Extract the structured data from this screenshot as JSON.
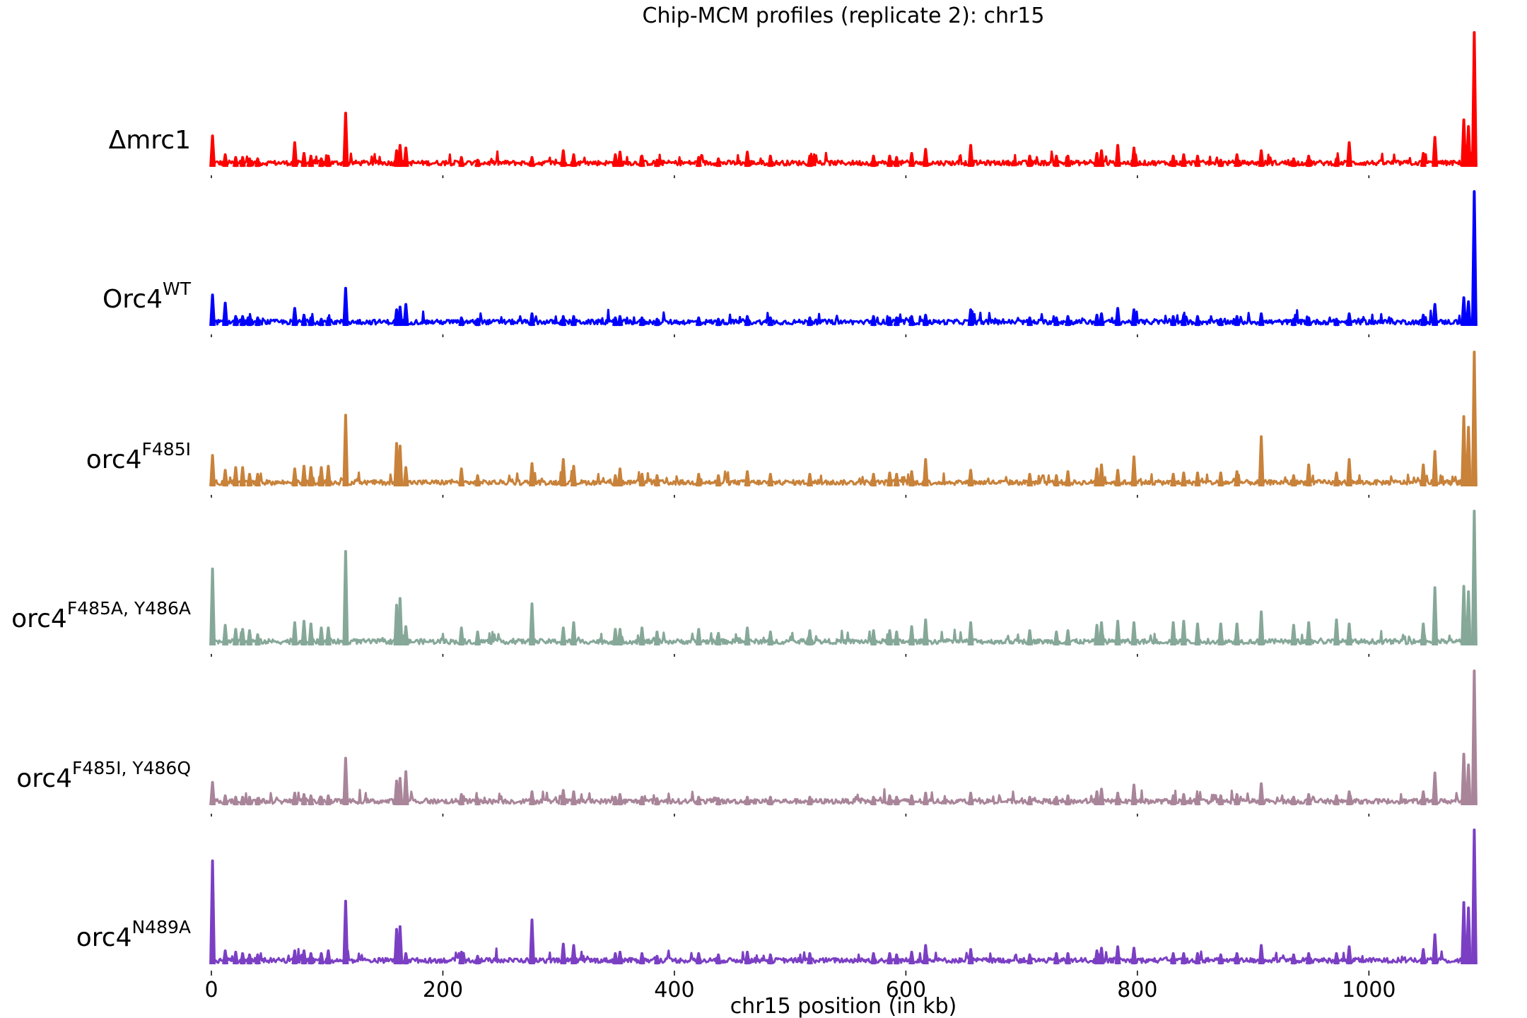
{
  "chart_data": {
    "type": "line",
    "title": "Chip-MCM profiles (replicate 2): chr15",
    "xlabel": "chr15 position (in kb)",
    "xlim": [
      0,
      1092
    ],
    "x_ticks": [
      0,
      200,
      400,
      600,
      800,
      1000
    ],
    "grid": false,
    "legend": "none",
    "peak_positions_kb": [
      1,
      12,
      21,
      27,
      33,
      40,
      72,
      80,
      86,
      95,
      101,
      116,
      160,
      163,
      168,
      216,
      230,
      277,
      304,
      313,
      349,
      353,
      372,
      385,
      421,
      438,
      463,
      483,
      517,
      572,
      586,
      592,
      605,
      617,
      656,
      707,
      730,
      740,
      765,
      769,
      783,
      797,
      831,
      840,
      852,
      872,
      886,
      907,
      935,
      948,
      972,
      983,
      1047,
      1057,
      1082,
      1086,
      1091
    ],
    "series": [
      {
        "name": "Δmrc1",
        "label_base": "Δmrc1",
        "label_sup": "",
        "color": "#ff0000",
        "peak_heights": [
          0.23,
          0.09,
          0.07,
          0.07,
          0.06,
          0.06,
          0.18,
          0.1,
          0.08,
          0.06,
          0.08,
          0.4,
          0.12,
          0.16,
          0.14,
          0.07,
          0.05,
          0.07,
          0.12,
          0.09,
          0.09,
          0.11,
          0.08,
          0.05,
          0.07,
          0.06,
          0.11,
          0.08,
          0.08,
          0.08,
          0.08,
          0.07,
          0.1,
          0.13,
          0.16,
          0.08,
          0.08,
          0.08,
          0.1,
          0.12,
          0.16,
          0.14,
          0.08,
          0.09,
          0.08,
          0.05,
          0.09,
          0.12,
          0.06,
          0.08,
          0.06,
          0.18,
          0.1,
          0.22,
          0.35,
          0.3,
          1.0
        ]
      },
      {
        "name": "Orc4WT",
        "label_base": "Orc4",
        "label_sup": "WT",
        "color": "#0000ff",
        "peak_heights": [
          0.23,
          0.17,
          0.07,
          0.07,
          0.06,
          0.06,
          0.13,
          0.08,
          0.06,
          0.05,
          0.06,
          0.28,
          0.12,
          0.14,
          0.16,
          0.06,
          0.05,
          0.09,
          0.07,
          0.07,
          0.06,
          0.07,
          0.06,
          0.05,
          0.06,
          0.05,
          0.07,
          0.06,
          0.06,
          0.07,
          0.06,
          0.06,
          0.07,
          0.08,
          0.12,
          0.06,
          0.06,
          0.07,
          0.08,
          0.09,
          0.13,
          0.12,
          0.07,
          0.08,
          0.07,
          0.05,
          0.07,
          0.09,
          0.05,
          0.06,
          0.05,
          0.09,
          0.08,
          0.16,
          0.21,
          0.18,
          1.0
        ]
      },
      {
        "name": "orc4F485I",
        "label_base": "orc4",
        "label_sup": "F485I",
        "color": "#c8823a",
        "peak_heights": [
          0.23,
          0.12,
          0.14,
          0.14,
          0.09,
          0.09,
          0.13,
          0.15,
          0.14,
          0.14,
          0.15,
          0.53,
          0.32,
          0.3,
          0.14,
          0.13,
          0.08,
          0.17,
          0.2,
          0.15,
          0.08,
          0.13,
          0.09,
          0.08,
          0.09,
          0.08,
          0.11,
          0.09,
          0.09,
          0.09,
          0.1,
          0.09,
          0.11,
          0.2,
          0.12,
          0.09,
          0.08,
          0.11,
          0.13,
          0.16,
          0.12,
          0.22,
          0.09,
          0.1,
          0.1,
          0.1,
          0.11,
          0.37,
          0.08,
          0.16,
          0.1,
          0.2,
          0.16,
          0.26,
          0.52,
          0.44,
          1.0
        ]
      },
      {
        "name": "orc4F485A, Y486A",
        "label_base": "orc4",
        "label_sup": "F485A, Y486A",
        "color": "#86a899",
        "peak_heights": [
          0.57,
          0.15,
          0.12,
          0.12,
          0.11,
          0.08,
          0.17,
          0.18,
          0.16,
          0.13,
          0.13,
          0.7,
          0.3,
          0.35,
          0.14,
          0.13,
          0.1,
          0.31,
          0.13,
          0.17,
          0.12,
          0.12,
          0.13,
          0.1,
          0.12,
          0.09,
          0.13,
          0.1,
          0.11,
          0.11,
          0.11,
          0.1,
          0.14,
          0.19,
          0.17,
          0.11,
          0.1,
          0.11,
          0.15,
          0.17,
          0.18,
          0.17,
          0.17,
          0.18,
          0.16,
          0.16,
          0.16,
          0.25,
          0.15,
          0.17,
          0.19,
          0.16,
          0.16,
          0.43,
          0.44,
          0.4,
          1.0
        ]
      },
      {
        "name": "orc4F485I, Y486Q",
        "label_base": "orc4",
        "label_sup": "F485I, Y486Q",
        "color": "#a9859a",
        "peak_heights": [
          0.17,
          0.07,
          0.06,
          0.06,
          0.06,
          0.05,
          0.09,
          0.08,
          0.07,
          0.06,
          0.07,
          0.35,
          0.18,
          0.2,
          0.25,
          0.08,
          0.05,
          0.1,
          0.11,
          0.1,
          0.06,
          0.08,
          0.06,
          0.05,
          0.06,
          0.05,
          0.06,
          0.06,
          0.06,
          0.06,
          0.07,
          0.06,
          0.07,
          0.09,
          0.09,
          0.06,
          0.06,
          0.07,
          0.1,
          0.12,
          0.09,
          0.15,
          0.07,
          0.08,
          0.07,
          0.07,
          0.08,
          0.16,
          0.06,
          0.08,
          0.07,
          0.1,
          0.1,
          0.24,
          0.38,
          0.3,
          1.0
        ]
      },
      {
        "name": "orc4N489A",
        "label_base": "orc4",
        "label_sup": "N489A",
        "color": "#7b3fc4",
        "peak_heights": [
          0.77,
          0.1,
          0.09,
          0.08,
          0.07,
          0.07,
          0.1,
          0.1,
          0.08,
          0.08,
          0.1,
          0.47,
          0.26,
          0.28,
          0.08,
          0.09,
          0.06,
          0.33,
          0.15,
          0.14,
          0.08,
          0.09,
          0.08,
          0.06,
          0.08,
          0.07,
          0.09,
          0.07,
          0.08,
          0.08,
          0.08,
          0.07,
          0.09,
          0.14,
          0.11,
          0.07,
          0.08,
          0.08,
          0.1,
          0.12,
          0.13,
          0.12,
          0.08,
          0.08,
          0.08,
          0.07,
          0.08,
          0.14,
          0.07,
          0.08,
          0.08,
          0.13,
          0.11,
          0.22,
          0.46,
          0.42,
          1.0
        ]
      }
    ]
  }
}
